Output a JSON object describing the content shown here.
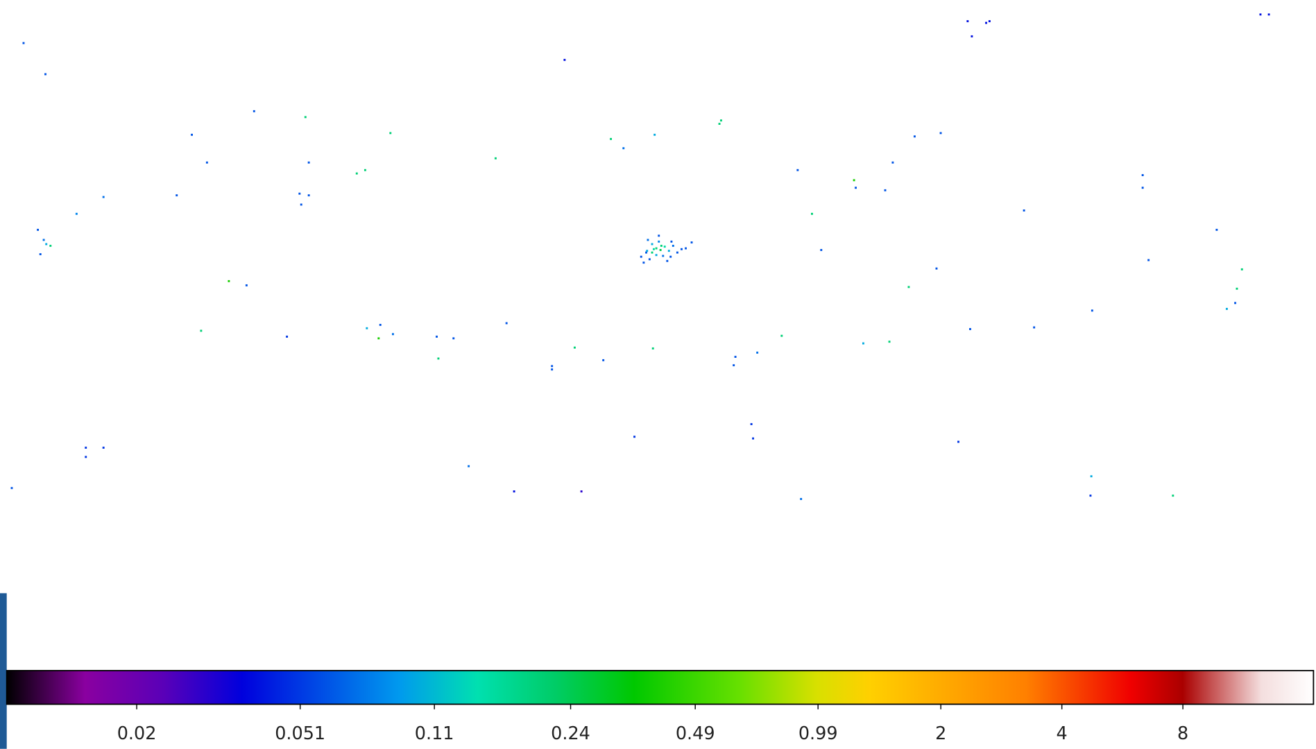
{
  "chart_data": {
    "type": "scatter",
    "xlim": [
      0,
      1564
    ],
    "ylim": [
      780,
      0
    ],
    "colormap": "nipy_spectral",
    "clim": [
      0.0095,
      16.9
    ],
    "log": true,
    "colorbar_ticks": [
      0.02,
      0.051,
      0.11,
      0.24,
      0.49,
      0.99,
      2,
      4,
      8
    ],
    "x": [
      28,
      54,
      302,
      363,
      228,
      464,
      246,
      367,
      589,
      424,
      434,
      123,
      210,
      356,
      367,
      358,
      91,
      671,
      726,
      741,
      778,
      855,
      857,
      948,
      1015,
      1017,
      1061,
      1052,
      1087,
      1118,
      965,
      976,
      1150,
      1155,
      1172,
      1176,
      1498,
      1508,
      1358,
      1358,
      1217,
      1446,
      1365,
      1476,
      1470,
      1468,
      1458,
      45,
      52,
      55,
      60,
      48,
      272,
      293,
      1113,
      1080,
      1298,
      1229,
      1153,
      239,
      341,
      436,
      452,
      467,
      450,
      519,
      539,
      602,
      521,
      683,
      656,
      656,
      717,
      776,
      874,
      872,
      900,
      929,
      1026,
      1057,
      893,
      895,
      754,
      1139,
      102,
      123,
      102,
      14,
      557,
      611,
      691,
      952,
      1297,
      1296,
      1394,
      770,
      775,
      780,
      785,
      790,
      795,
      800,
      768,
      762,
      772,
      780,
      788,
      797,
      805,
      810,
      815,
      822,
      783,
      769,
      775,
      786,
      793,
      765,
      798,
      783,
      777
    ],
    "y": [
      51,
      88,
      132,
      139,
      160,
      158,
      193,
      193,
      188,
      206,
      202,
      234,
      232,
      230,
      232,
      243,
      254,
      71,
      165,
      176,
      160,
      147,
      143,
      202,
      214,
      223,
      193,
      226,
      162,
      158,
      254,
      297,
      25,
      43,
      27,
      25,
      17,
      17,
      208,
      223,
      250,
      273,
      309,
      320,
      343,
      360,
      367,
      273,
      285,
      290,
      292,
      302,
      334,
      339,
      319,
      341,
      369,
      389,
      391,
      393,
      400,
      390,
      386,
      397,
      402,
      400,
      402,
      384,
      426,
      413,
      435,
      439,
      428,
      414,
      424,
      434,
      419,
      399,
      408,
      406,
      504,
      521,
      519,
      525,
      532,
      532,
      543,
      580,
      554,
      584,
      584,
      593,
      566,
      589,
      589,
      285,
      290,
      295,
      297,
      293,
      298,
      292,
      300,
      305,
      308,
      303,
      304,
      305,
      300,
      296,
      295,
      288,
      280,
      298,
      300,
      292,
      310,
      312,
      287,
      287,
      296
    ],
    "values": [
      0.06,
      0.06,
      0.06,
      0.2,
      0.06,
      0.2,
      0.06,
      0.06,
      0.2,
      0.2,
      0.2,
      0.07,
      0.06,
      0.06,
      0.06,
      0.06,
      0.08,
      0.04,
      0.2,
      0.07,
      0.1,
      0.2,
      0.2,
      0.06,
      0.4,
      0.06,
      0.06,
      0.06,
      0.06,
      0.06,
      0.2,
      0.06,
      0.04,
      0.04,
      0.04,
      0.04,
      0.04,
      0.04,
      0.06,
      0.06,
      0.06,
      0.06,
      0.06,
      0.2,
      0.2,
      0.06,
      0.1,
      0.06,
      0.07,
      0.1,
      0.2,
      0.06,
      0.4,
      0.06,
      0.06,
      0.2,
      0.06,
      0.06,
      0.06,
      0.2,
      0.05,
      0.1,
      0.06,
      0.07,
      0.4,
      0.06,
      0.06,
      0.06,
      0.2,
      0.2,
      0.06,
      0.06,
      0.06,
      0.2,
      0.06,
      0.06,
      0.07,
      0.2,
      0.1,
      0.2,
      0.05,
      0.05,
      0.05,
      0.05,
      0.05,
      0.05,
      0.05,
      0.06,
      0.07,
      0.04,
      0.03,
      0.07,
      0.1,
      0.05,
      0.2,
      0.07,
      0.1,
      0.2,
      0.24,
      0.15,
      0.1,
      0.07,
      0.06,
      0.06,
      0.06,
      0.1,
      0.07,
      0.06,
      0.06,
      0.06,
      0.06,
      0.06,
      0.06,
      0.1,
      0.2,
      0.2,
      0.06,
      0.06,
      0.06,
      0.08,
      0.15
    ]
  }
}
